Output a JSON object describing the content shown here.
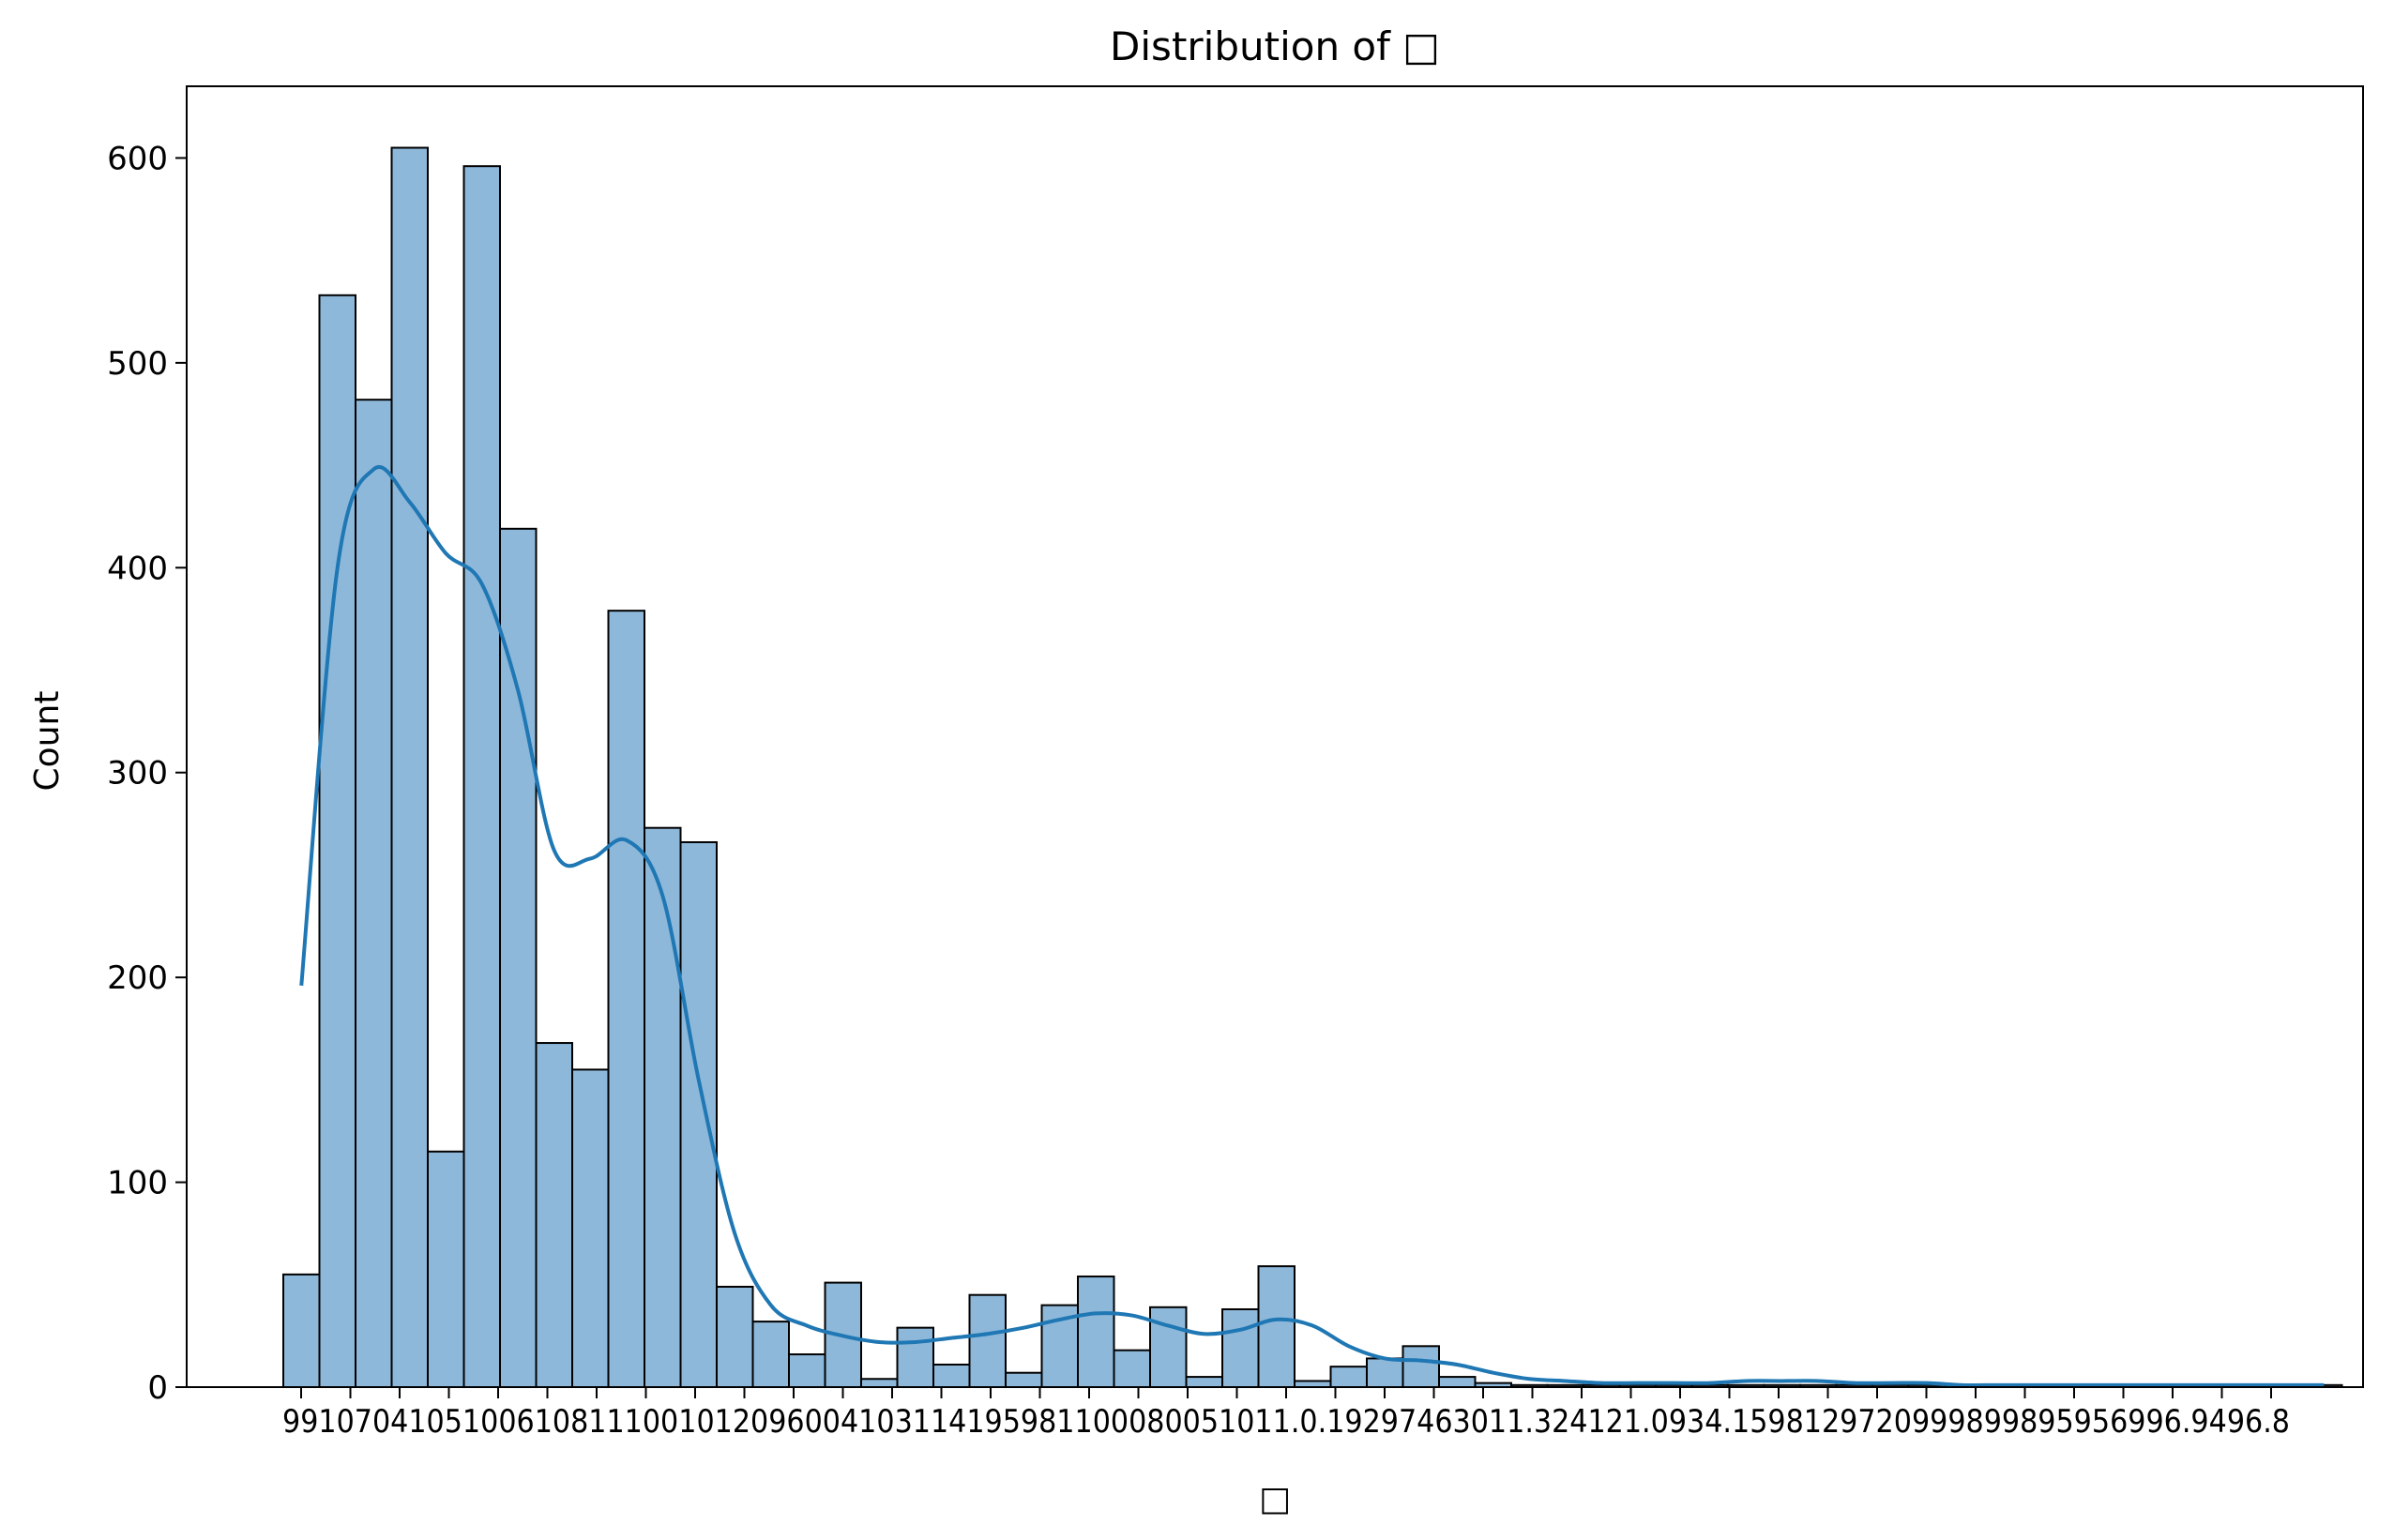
{
  "chart_data": {
    "type": "bar",
    "title": "Distribution of □",
    "xlabel": "□",
    "ylabel": "Count",
    "ylim": [
      0,
      635
    ],
    "yticks": [
      0,
      100,
      200,
      300,
      400,
      500,
      600
    ],
    "grid": false,
    "legend": "none",
    "bar_color": "#8db8da",
    "edge_color": "#000000",
    "kde_color": "#1f77b4",
    "x_tick_labels": [
      "99",
      "101",
      "104",
      "105",
      "106",
      "108",
      "110",
      "101",
      "103",
      "109",
      "96",
      "104",
      "103",
      "1.14",
      "1.25",
      "98",
      "110",
      "108",
      "105",
      "110",
      "1.19",
      "97",
      "96",
      "103",
      "103",
      "104",
      "121",
      "109",
      "94",
      "98",
      "129",
      "99",
      "109",
      "98",
      "98",
      "99",
      "96",
      "94",
      "94",
      "96",
      "6.8"
    ],
    "x_tick_labels_rendered": "99107041051006108111001012096004103114195981100080051011.0.19297463011.324121.0934.1598129720999899895956996.9496.8",
    "values": [
      55,
      533,
      482,
      605,
      115,
      596,
      419,
      168,
      155,
      379,
      273,
      266,
      49,
      32,
      16,
      51,
      4,
      29,
      11,
      45,
      7,
      40,
      54,
      18,
      39,
      5,
      38,
      59,
      3,
      10,
      14,
      20,
      5,
      2,
      1,
      1,
      1,
      1,
      1,
      1,
      1,
      1,
      1,
      1,
      1,
      1,
      1,
      1,
      1,
      1,
      1,
      1,
      1,
      1,
      1,
      1,
      1
    ],
    "kde": [
      196,
      400,
      448,
      432,
      407,
      392,
      340,
      262,
      258,
      267,
      240,
      150,
      75,
      40,
      30,
      25,
      22,
      22,
      24,
      26,
      29,
      33,
      36,
      35,
      30,
      26,
      28,
      33,
      30,
      20,
      14,
      13,
      11,
      7,
      4,
      3,
      2,
      2,
      2,
      2,
      3,
      3,
      3,
      2,
      2,
      2,
      1,
      1,
      1,
      1,
      1,
      1,
      1,
      1,
      1,
      1,
      1
    ]
  }
}
